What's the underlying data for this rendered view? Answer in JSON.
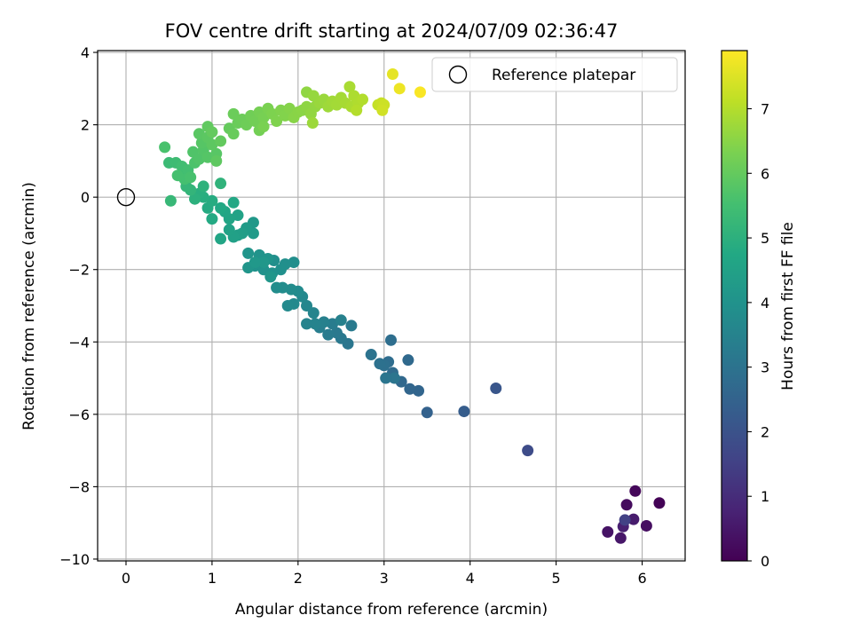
{
  "chart_data": {
    "type": "scatter",
    "title": "FOV centre drift starting at 2024/07/09 02:36:47",
    "xlabel": "Angular distance from reference (arcmin)",
    "ylabel": "Rotation from reference (arcmin)",
    "xlim": [
      -0.33,
      6.5
    ],
    "ylim": [
      -10.05,
      4.05
    ],
    "x_ticks": [
      0,
      1,
      2,
      3,
      4,
      5,
      6
    ],
    "y_ticks": [
      -10,
      -8,
      -6,
      -4,
      -2,
      0,
      2,
      4
    ],
    "grid": true,
    "legend": {
      "label": "Reference platepar",
      "placement": "top-right"
    },
    "reference_point": {
      "x": 0,
      "y": 0
    },
    "colorbar": {
      "label": "Hours from first FF file",
      "colormap": "viridis",
      "range": [
        0,
        7.9
      ],
      "ticks": [
        0,
        1,
        2,
        3,
        4,
        5,
        6,
        7
      ]
    },
    "points": [
      {
        "x": 6.2,
        "y": -8.45,
        "h": 0.05
      },
      {
        "x": 5.92,
        "y": -8.12,
        "h": 0.15
      },
      {
        "x": 5.82,
        "y": -8.5,
        "h": 0.25
      },
      {
        "x": 6.05,
        "y": -9.08,
        "h": 0.3
      },
      {
        "x": 5.6,
        "y": -9.25,
        "h": 0.4
      },
      {
        "x": 5.75,
        "y": -9.42,
        "h": 0.5
      },
      {
        "x": 5.9,
        "y": -8.9,
        "h": 0.6
      },
      {
        "x": 5.78,
        "y": -9.1,
        "h": 0.7
      },
      {
        "x": 5.8,
        "y": -8.92,
        "h": 1.5
      },
      {
        "x": 4.67,
        "y": -7.0,
        "h": 1.8
      },
      {
        "x": 4.3,
        "y": -5.28,
        "h": 2.1
      },
      {
        "x": 3.93,
        "y": -5.92,
        "h": 2.3
      },
      {
        "x": 3.5,
        "y": -5.95,
        "h": 2.45
      },
      {
        "x": 3.4,
        "y": -5.35,
        "h": 2.55
      },
      {
        "x": 3.3,
        "y": -5.3,
        "h": 2.6
      },
      {
        "x": 3.2,
        "y": -5.1,
        "h": 2.65
      },
      {
        "x": 3.28,
        "y": -4.5,
        "h": 2.7
      },
      {
        "x": 3.1,
        "y": -4.85,
        "h": 2.75
      },
      {
        "x": 3.05,
        "y": -4.55,
        "h": 2.8
      },
      {
        "x": 3.08,
        "y": -3.95,
        "h": 2.85
      },
      {
        "x": 3.0,
        "y": -4.65,
        "h": 2.9
      },
      {
        "x": 2.95,
        "y": -4.6,
        "h": 2.95
      },
      {
        "x": 2.85,
        "y": -4.35,
        "h": 3.0
      },
      {
        "x": 3.12,
        "y": -5.0,
        "h": 3.05
      },
      {
        "x": 3.02,
        "y": -5.0,
        "h": 3.08
      },
      {
        "x": 2.58,
        "y": -4.05,
        "h": 3.1
      },
      {
        "x": 2.5,
        "y": -3.9,
        "h": 3.15
      },
      {
        "x": 2.45,
        "y": -3.75,
        "h": 3.2
      },
      {
        "x": 2.62,
        "y": -3.55,
        "h": 3.22
      },
      {
        "x": 2.35,
        "y": -3.8,
        "h": 3.25
      },
      {
        "x": 2.4,
        "y": -3.5,
        "h": 3.3
      },
      {
        "x": 2.25,
        "y": -3.6,
        "h": 3.35
      },
      {
        "x": 2.3,
        "y": -3.45,
        "h": 3.4
      },
      {
        "x": 2.5,
        "y": -3.4,
        "h": 3.45
      },
      {
        "x": 2.2,
        "y": -3.5,
        "h": 3.5
      },
      {
        "x": 2.1,
        "y": -3.5,
        "h": 3.52
      },
      {
        "x": 2.18,
        "y": -3.2,
        "h": 3.55
      },
      {
        "x": 2.1,
        "y": -3.0,
        "h": 3.6
      },
      {
        "x": 2.05,
        "y": -2.75,
        "h": 3.65
      },
      {
        "x": 1.95,
        "y": -2.95,
        "h": 3.7
      },
      {
        "x": 1.88,
        "y": -3.0,
        "h": 3.72
      },
      {
        "x": 2.0,
        "y": -2.6,
        "h": 3.75
      },
      {
        "x": 1.92,
        "y": -2.55,
        "h": 3.78
      },
      {
        "x": 1.82,
        "y": -2.5,
        "h": 3.8
      },
      {
        "x": 1.75,
        "y": -2.5,
        "h": 3.82
      },
      {
        "x": 1.95,
        "y": -1.8,
        "h": 3.85
      },
      {
        "x": 1.85,
        "y": -1.85,
        "h": 3.88
      },
      {
        "x": 1.72,
        "y": -1.75,
        "h": 3.9
      },
      {
        "x": 1.8,
        "y": -2.0,
        "h": 3.92
      },
      {
        "x": 1.7,
        "y": -2.1,
        "h": 3.95
      },
      {
        "x": 1.6,
        "y": -2.0,
        "h": 3.98
      },
      {
        "x": 1.5,
        "y": -1.9,
        "h": 4.0
      },
      {
        "x": 1.55,
        "y": -1.6,
        "h": 4.02
      },
      {
        "x": 1.65,
        "y": -1.7,
        "h": 4.05
      },
      {
        "x": 1.42,
        "y": -1.55,
        "h": 4.08
      },
      {
        "x": 1.42,
        "y": -1.95,
        "h": 4.1
      },
      {
        "x": 1.68,
        "y": -2.2,
        "h": 4.12
      },
      {
        "x": 1.6,
        "y": -1.8,
        "h": 4.15
      },
      {
        "x": 1.5,
        "y": -1.8,
        "h": 4.18
      },
      {
        "x": 1.48,
        "y": -0.7,
        "h": 4.2
      },
      {
        "x": 1.48,
        "y": -1.0,
        "h": 4.25
      },
      {
        "x": 1.4,
        "y": -0.85,
        "h": 4.3
      },
      {
        "x": 1.35,
        "y": -1.0,
        "h": 4.35
      },
      {
        "x": 1.3,
        "y": -1.05,
        "h": 4.4
      },
      {
        "x": 1.25,
        "y": -1.1,
        "h": 4.45
      },
      {
        "x": 1.2,
        "y": -0.9,
        "h": 4.5
      },
      {
        "x": 1.3,
        "y": -0.5,
        "h": 4.55
      },
      {
        "x": 1.2,
        "y": -0.6,
        "h": 4.6
      },
      {
        "x": 1.1,
        "y": -1.15,
        "h": 4.62
      },
      {
        "x": 1.15,
        "y": -0.4,
        "h": 4.65
      },
      {
        "x": 1.25,
        "y": -0.15,
        "h": 4.7
      },
      {
        "x": 1.1,
        "y": -0.3,
        "h": 4.75
      },
      {
        "x": 1.0,
        "y": -0.6,
        "h": 4.78
      },
      {
        "x": 0.95,
        "y": -0.3,
        "h": 4.8
      },
      {
        "x": 1.0,
        "y": -0.1,
        "h": 4.85
      },
      {
        "x": 0.9,
        "y": 0.0,
        "h": 4.9
      },
      {
        "x": 0.85,
        "y": 0.1,
        "h": 4.95
      },
      {
        "x": 0.8,
        "y": -0.05,
        "h": 5.0
      },
      {
        "x": 0.9,
        "y": 0.3,
        "h": 5.05
      },
      {
        "x": 1.1,
        "y": 0.38,
        "h": 5.1
      },
      {
        "x": 0.75,
        "y": 0.2,
        "h": 5.15
      },
      {
        "x": 0.7,
        "y": 0.3,
        "h": 5.2
      },
      {
        "x": 0.52,
        "y": -0.1,
        "h": 5.25
      },
      {
        "x": 0.62,
        "y": 0.6,
        "h": 5.3
      },
      {
        "x": 0.5,
        "y": 0.95,
        "h": 5.35
      },
      {
        "x": 0.58,
        "y": 0.95,
        "h": 5.4
      },
      {
        "x": 0.65,
        "y": 0.85,
        "h": 5.45
      },
      {
        "x": 0.72,
        "y": 0.75,
        "h": 5.5
      },
      {
        "x": 0.68,
        "y": 0.5,
        "h": 5.52
      },
      {
        "x": 0.6,
        "y": 0.6,
        "h": 5.55
      },
      {
        "x": 0.75,
        "y": 0.55,
        "h": 5.58
      },
      {
        "x": 0.45,
        "y": 1.38,
        "h": 5.6
      },
      {
        "x": 0.8,
        "y": 0.95,
        "h": 5.65
      },
      {
        "x": 0.78,
        "y": 1.25,
        "h": 5.7
      },
      {
        "x": 0.85,
        "y": 1.05,
        "h": 5.72
      },
      {
        "x": 0.9,
        "y": 1.3,
        "h": 5.75
      },
      {
        "x": 0.95,
        "y": 1.1,
        "h": 5.78
      },
      {
        "x": 0.88,
        "y": 1.5,
        "h": 5.8
      },
      {
        "x": 1.05,
        "y": 1.2,
        "h": 5.82
      },
      {
        "x": 0.85,
        "y": 1.75,
        "h": 5.85
      },
      {
        "x": 0.95,
        "y": 1.65,
        "h": 5.88
      },
      {
        "x": 1.0,
        "y": 1.45,
        "h": 5.9
      },
      {
        "x": 1.05,
        "y": 1.0,
        "h": 5.92
      },
      {
        "x": 0.95,
        "y": 1.95,
        "h": 5.95
      },
      {
        "x": 1.1,
        "y": 1.55,
        "h": 5.98
      },
      {
        "x": 1.0,
        "y": 1.8,
        "h": 6.0
      },
      {
        "x": 1.2,
        "y": 1.9,
        "h": 6.02
      },
      {
        "x": 1.25,
        "y": 1.75,
        "h": 6.05
      },
      {
        "x": 1.3,
        "y": 2.05,
        "h": 6.08
      },
      {
        "x": 1.25,
        "y": 2.3,
        "h": 6.1
      },
      {
        "x": 1.35,
        "y": 2.15,
        "h": 6.12
      },
      {
        "x": 1.4,
        "y": 2.0,
        "h": 6.15
      },
      {
        "x": 1.45,
        "y": 2.25,
        "h": 6.18
      },
      {
        "x": 1.5,
        "y": 2.1,
        "h": 6.2
      },
      {
        "x": 1.55,
        "y": 1.85,
        "h": 6.22
      },
      {
        "x": 1.55,
        "y": 2.35,
        "h": 6.25
      },
      {
        "x": 1.6,
        "y": 2.2,
        "h": 6.28
      },
      {
        "x": 1.6,
        "y": 1.95,
        "h": 6.3
      },
      {
        "x": 1.65,
        "y": 2.45,
        "h": 6.32
      },
      {
        "x": 1.7,
        "y": 2.3,
        "h": 6.35
      },
      {
        "x": 1.75,
        "y": 2.1,
        "h": 6.38
      },
      {
        "x": 1.8,
        "y": 2.4,
        "h": 6.4
      },
      {
        "x": 1.85,
        "y": 2.25,
        "h": 6.42
      },
      {
        "x": 1.9,
        "y": 2.45,
        "h": 6.45
      },
      {
        "x": 1.95,
        "y": 2.2,
        "h": 6.48
      },
      {
        "x": 2.0,
        "y": 2.35,
        "h": 6.5
      },
      {
        "x": 2.05,
        "y": 2.4,
        "h": 6.52
      },
      {
        "x": 2.1,
        "y": 2.5,
        "h": 6.55
      },
      {
        "x": 2.1,
        "y": 2.9,
        "h": 6.58
      },
      {
        "x": 2.15,
        "y": 2.3,
        "h": 6.6
      },
      {
        "x": 2.2,
        "y": 2.5,
        "h": 6.62
      },
      {
        "x": 2.18,
        "y": 2.8,
        "h": 6.65
      },
      {
        "x": 2.25,
        "y": 2.6,
        "h": 6.68
      },
      {
        "x": 2.3,
        "y": 2.7,
        "h": 6.7
      },
      {
        "x": 2.17,
        "y": 2.05,
        "h": 6.72
      },
      {
        "x": 2.35,
        "y": 2.5,
        "h": 6.75
      },
      {
        "x": 2.4,
        "y": 2.65,
        "h": 6.78
      },
      {
        "x": 2.45,
        "y": 2.55,
        "h": 6.8
      },
      {
        "x": 2.5,
        "y": 2.75,
        "h": 6.82
      },
      {
        "x": 2.55,
        "y": 2.6,
        "h": 6.85
      },
      {
        "x": 2.6,
        "y": 3.05,
        "h": 6.88
      },
      {
        "x": 2.62,
        "y": 2.5,
        "h": 6.9
      },
      {
        "x": 2.65,
        "y": 2.8,
        "h": 6.92
      },
      {
        "x": 2.7,
        "y": 2.6,
        "h": 6.95
      },
      {
        "x": 2.75,
        "y": 2.7,
        "h": 6.98
      },
      {
        "x": 2.68,
        "y": 2.4,
        "h": 7.0
      },
      {
        "x": 2.93,
        "y": 2.55,
        "h": 7.2
      },
      {
        "x": 2.97,
        "y": 2.6,
        "h": 7.25
      },
      {
        "x": 3.0,
        "y": 2.55,
        "h": 7.3
      },
      {
        "x": 2.98,
        "y": 2.4,
        "h": 7.35
      },
      {
        "x": 3.1,
        "y": 3.4,
        "h": 7.6
      },
      {
        "x": 3.18,
        "y": 3.0,
        "h": 7.7
      },
      {
        "x": 3.42,
        "y": 2.9,
        "h": 7.85
      }
    ]
  }
}
